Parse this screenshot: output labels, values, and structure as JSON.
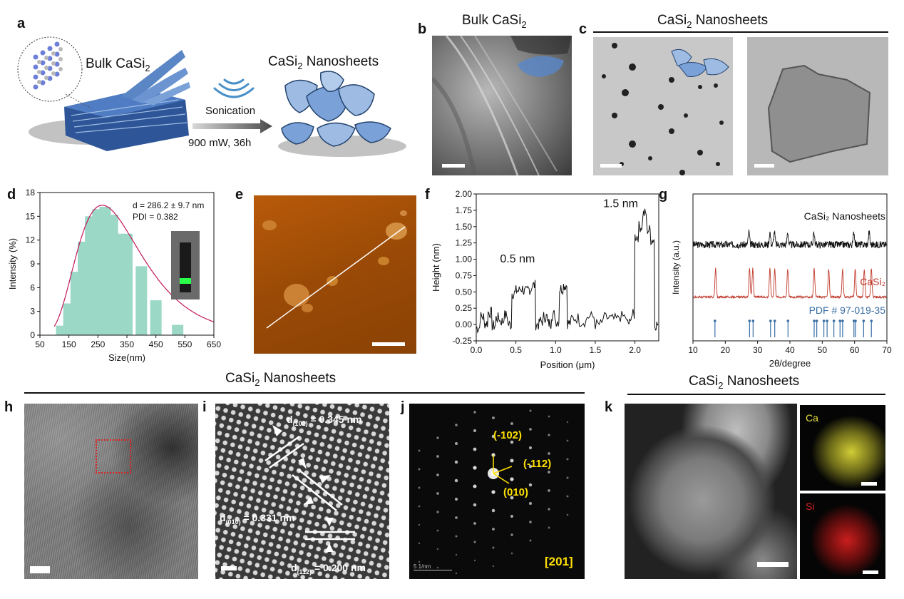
{
  "figure": {
    "panel_labels": {
      "a": "a",
      "b": "b",
      "c": "c",
      "d": "d",
      "e": "e",
      "f": "f",
      "g": "g",
      "h": "h",
      "i": "i",
      "j": "j",
      "k": "k"
    },
    "a": {
      "bulk_label": "Bulk CaSi",
      "bulk_sub": "2",
      "nano_label_pre": "CaSi",
      "nano_sub": "2",
      "nano_label_post": " Nanosheets",
      "process": "Sonication",
      "conditions": "900 mW,  36h",
      "colors": {
        "sheet": "#5b86c5",
        "sheet_light": "#9dbbe3"
      }
    },
    "b": {
      "title": "Bulk CaSi",
      "title_sub": "2"
    },
    "c": {
      "title_pre": "CaSi",
      "title_sub": "2",
      "title_post": " Nanosheets"
    },
    "hk_titles": {
      "pre": "CaSi",
      "sub": "2",
      "post": " Nanosheets"
    },
    "i": {
      "d102_pre": "d",
      "d102_sub": "(102)",
      "d102_post": " = 0.345 nm",
      "d010_pre": "d",
      "d010_sub": "(010)",
      "d010_post": " = 0.331 nm",
      "d112_pre": "d",
      "d112_sub": "(112)",
      "d112_post": " = 0.200 nm"
    },
    "j": {
      "spot_a": "(-102)",
      "spot_b": "(-112)",
      "spot_c": "(010)",
      "zone": "[201]",
      "scale_text": "5 1/nm",
      "colors": {
        "label": "#ffe000"
      }
    },
    "k": {
      "ca": "Ca",
      "si": "Si",
      "colors": {
        "ca": "#e7e23a",
        "si": "#e02020"
      }
    }
  },
  "chart_data": [
    {
      "panel": "d",
      "type": "bar",
      "x": [
        125,
        150,
        175,
        200,
        225,
        250,
        275,
        300,
        325,
        350,
        400,
        450,
        475,
        525
      ],
      "values": [
        1.2,
        4.0,
        8.0,
        11.8,
        15.0,
        15.9,
        16.2,
        15.2,
        12.8,
        12.8,
        8.7,
        4.4,
        0,
        1.3
      ],
      "fit_curve": {
        "type": "lognormal-like",
        "peak_x": 265,
        "peak_y": 16.4
      },
      "xlabel": "Size(nm)",
      "ylabel": "Intensity (%)",
      "xlim": [
        50,
        650
      ],
      "ylim": [
        0,
        18
      ],
      "xticks": [
        "50",
        "150",
        "250",
        "350",
        "450",
        "550",
        "650"
      ],
      "yticks": [
        "0",
        "3",
        "6",
        "9",
        "12",
        "15",
        "18"
      ],
      "annotation_1": "d = 286.2 ± 9.7 nm",
      "annotation_2": "PDI = 0.382",
      "colors": {
        "bar": "#9bd8c6",
        "curve": "#c2185b"
      }
    },
    {
      "panel": "f",
      "type": "line",
      "x": [
        0,
        0.05,
        0.1,
        0.15,
        0.2,
        0.25,
        0.3,
        0.35,
        0.4,
        0.45,
        0.5,
        0.55,
        0.6,
        0.65,
        0.7,
        0.75,
        0.8,
        0.85,
        0.9,
        0.95,
        1.0,
        1.05,
        1.1,
        1.15,
        1.2,
        1.3,
        1.4,
        1.5,
        1.6,
        1.7,
        1.8,
        1.9,
        1.95,
        2.0,
        2.05,
        2.1,
        2.15,
        2.2,
        2.25,
        2.3
      ],
      "y": [
        -0.05,
        0.12,
        0.02,
        0.18,
        -0.02,
        0.1,
        0.05,
        0.14,
        0.0,
        0.48,
        0.52,
        0.55,
        0.5,
        0.54,
        0.6,
        0.0,
        0.05,
        0.12,
        0.02,
        0.15,
        0.05,
        0.55,
        0.6,
        0.02,
        0.1,
        0.05,
        0.12,
        0.0,
        0.1,
        0.08,
        0.12,
        0.02,
        0.15,
        1.35,
        1.5,
        1.7,
        1.45,
        1.3,
        0.0,
        -0.1
      ],
      "xlabel": "Position (μm)",
      "ylabel": "Height (nm)",
      "xlim": [
        0,
        2.3
      ],
      "ylim": [
        -0.25,
        2.0
      ],
      "xticks": [
        "0.0",
        "0.5",
        "1.0",
        "1.5",
        "2.0"
      ],
      "yticks": [
        "-0.25",
        "0.00",
        "0.25",
        "0.50",
        "0.75",
        "1.00",
        "1.25",
        "1.50",
        "1.75",
        "2.00"
      ],
      "annotation_1": "0.5 nm",
      "annotation_2": "1.5 nm"
    },
    {
      "panel": "g",
      "type": "line",
      "xlabel": "2θ/degree",
      "ylabel": "Intensity (a.u.)",
      "xlim": [
        10,
        70
      ],
      "xticks": [
        "10",
        "20",
        "30",
        "40",
        "50",
        "60",
        "70"
      ],
      "series": [
        {
          "name": "CaSi₂ Nanosheets",
          "color": "#111111",
          "peaks": [
            27.3,
            33.8,
            35.2,
            39.3,
            47.4,
            59.8,
            64.5
          ]
        },
        {
          "name": "CaSi₂",
          "color": "#c0392b",
          "peaks": [
            17.0,
            27.5,
            28.5,
            33.8,
            35.3,
            39.3,
            47.5,
            52.0,
            56.3,
            60.2,
            63.0,
            65.2
          ]
        },
        {
          "name": "PDF # 97-019-35",
          "color": "#3a6ea5",
          "sticks": [
            16.8,
            27.5,
            28.6,
            34.0,
            35.3,
            39.4,
            47.5,
            48.3,
            50.5,
            51.5,
            53.6,
            55.5,
            56.3,
            59.8,
            60.3,
            62.8,
            65.2
          ]
        }
      ]
    }
  ]
}
